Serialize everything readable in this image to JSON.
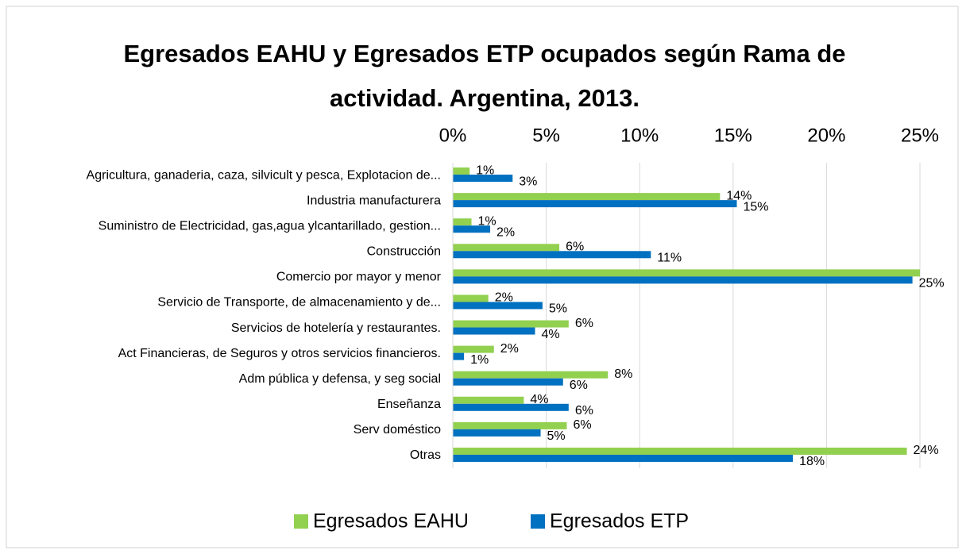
{
  "chart_data": {
    "type": "bar",
    "orientation": "horizontal",
    "title": "Egresados EAHU y Egresados ETP ocupados según Rama de actividad. Argentina, 2013.",
    "categories": [
      "Agricultura, ganaderia, caza, silvicult y pesca, Explotacion de...",
      "Industria manufacturera",
      "Suministro de Electricidad, gas,agua ylcantarillado, gestion...",
      "Construcción",
      "Comercio por mayor y menor",
      "Servicio de Transporte, de almacenamiento y de...",
      "Servicios de hotelería y restaurantes.",
      "Act Financieras, de Seguros y otros servicios financieros.",
      "Adm pública y defensa, y seg social",
      "Enseñanza",
      "Serv doméstico",
      "Otras"
    ],
    "series": [
      {
        "name": "Egresados EAHU",
        "color": "#92d050",
        "values": [
          0.9,
          14.3,
          1.0,
          5.7,
          25.0,
          1.9,
          6.2,
          2.2,
          8.3,
          3.8,
          6.1,
          24.3
        ],
        "value_labels": [
          "1%",
          "14%",
          "1%",
          "6%",
          null,
          "2%",
          "6%",
          "2%",
          "8%",
          "4%",
          "6%",
          "24%"
        ]
      },
      {
        "name": "Egresados ETP",
        "color": "#0070c0",
        "values": [
          3.2,
          15.2,
          2.0,
          10.6,
          24.6,
          4.8,
          4.4,
          0.6,
          5.9,
          6.2,
          4.7,
          18.2
        ],
        "value_labels": [
          "3%",
          "15%",
          "2%",
          "11%",
          "25%",
          "5%",
          "4%",
          "1%",
          "6%",
          "6%",
          "5%",
          "18%"
        ]
      }
    ],
    "xlim": [
      0,
      25
    ],
    "xticks": [
      {
        "value": 0,
        "label": "0%"
      },
      {
        "value": 5,
        "label": "5%"
      },
      {
        "value": 10,
        "label": "10%"
      },
      {
        "value": 15,
        "label": "15%"
      },
      {
        "value": 20,
        "label": "20%"
      },
      {
        "value": 25,
        "label": "25%"
      }
    ],
    "grid": true,
    "legend": "bottom"
  }
}
